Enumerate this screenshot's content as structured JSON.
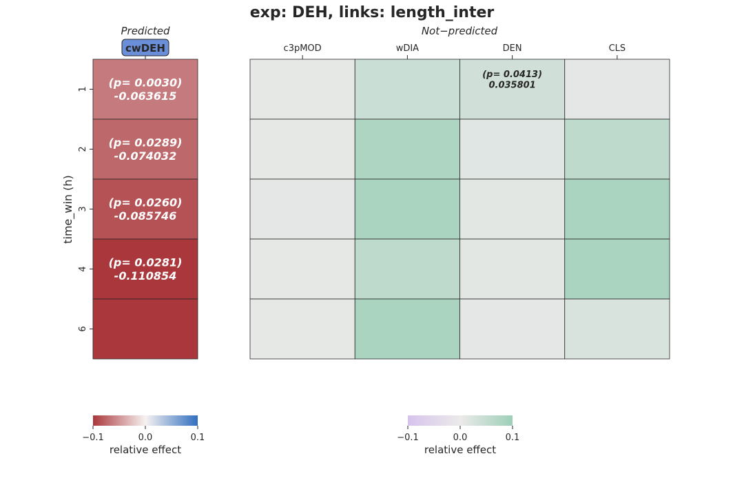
{
  "chart_data": {
    "type": "heatmap",
    "title": "exp: DEH, links: length_inter",
    "ylabel": "time_win (h)",
    "rows": [
      "1",
      "2",
      "3",
      "4",
      "6"
    ],
    "colors": {
      "text_dark": "#262626",
      "grid": "#262626",
      "badge_fill": "#6a8fd8",
      "diverging_neg": "#a9373b",
      "diverging_mid": "#f7f2f1",
      "diverging_pos": "#2f6fbf",
      "green_neg": "#d6c3ec",
      "green_mid": "#eceaea",
      "green_pos": "#9ecfb8"
    },
    "predicted": {
      "panel_title": "Predicted",
      "columns": [
        "cwDEH"
      ],
      "values": [
        [
          -0.063615
        ],
        [
          -0.074032
        ],
        [
          -0.085746
        ],
        [
          -0.110854
        ],
        [
          -0.12
        ]
      ],
      "annotations": [
        [
          "(p= 0.0030)\n-0.063615"
        ],
        [
          "(p= 0.0289)\n-0.074032"
        ],
        [
          "(p= 0.0260)\n-0.085746"
        ],
        [
          "(p= 0.0281)\n-0.110854"
        ],
        [
          ""
        ]
      ],
      "colorbar": {
        "label": "relative effect",
        "vmin": -0.1,
        "vmax": 0.1,
        "tick_labels": [
          "−0.1",
          "0.0",
          "0.1"
        ]
      }
    },
    "not_predicted": {
      "panel_title": "Not−predicted",
      "columns": [
        "c3pMOD",
        "wDIA",
        "DEN",
        "CLS"
      ],
      "values": [
        [
          0.008,
          0.045,
          0.035801,
          0.01
        ],
        [
          0.008,
          0.08,
          0.015,
          0.06
        ],
        [
          0.01,
          0.085,
          0.012,
          0.085
        ],
        [
          0.008,
          0.06,
          0.012,
          0.085
        ],
        [
          0.008,
          0.085,
          0.01,
          0.025
        ]
      ],
      "annotations": [
        [
          "",
          "",
          "(p= 0.0413)\n0.035801",
          ""
        ],
        [
          "",
          "",
          "",
          ""
        ],
        [
          "",
          "",
          "",
          ""
        ],
        [
          "",
          "",
          "",
          ""
        ],
        [
          "",
          "",
          "",
          ""
        ]
      ],
      "colorbar": {
        "label": "relative effect",
        "vmin": -0.1,
        "vmax": 0.1,
        "tick_labels": [
          "−0.1",
          "0.0",
          "0.1"
        ]
      }
    }
  }
}
